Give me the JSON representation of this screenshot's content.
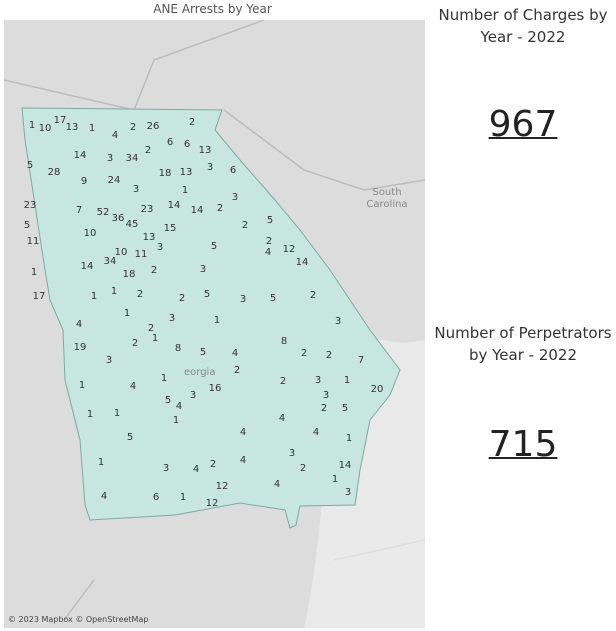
{
  "map_title": "ANE Arrests by Year",
  "kpis": [
    {
      "title": "Number of Charges by Year - 2022",
      "value": 967
    },
    {
      "title": "Number of Perpetrators by Year - 2022",
      "value": 715
    }
  ],
  "map_labels": {
    "neighbor": "South Carolina",
    "state": "eorgia"
  },
  "attribution": "© 2023 Mapbox © OpenStreetMap",
  "counties": [
    1,
    10,
    17,
    13,
    1,
    4,
    2,
    26,
    2,
    14,
    3,
    34,
    2,
    6,
    6,
    13,
    28,
    5,
    9,
    24,
    18,
    13,
    3,
    6,
    3,
    1,
    3,
    23,
    7,
    52,
    36,
    45,
    23,
    14,
    14,
    2,
    5,
    10,
    13,
    15,
    2,
    5,
    11,
    34,
    10,
    11,
    3,
    5,
    4,
    12,
    2,
    14,
    1,
    14,
    18,
    2,
    3,
    17,
    1,
    1,
    2,
    2,
    5,
    3,
    5,
    2,
    4,
    1,
    2,
    3,
    1,
    3,
    19,
    3,
    2,
    1,
    8,
    5,
    4,
    8,
    2,
    2,
    7,
    1,
    4,
    1,
    2,
    3,
    2,
    20,
    1,
    1,
    1,
    5,
    3,
    16,
    4,
    3,
    5,
    2,
    5,
    1,
    4,
    4,
    4,
    1,
    1,
    3,
    2,
    4,
    4,
    3,
    2,
    14,
    1,
    4,
    6,
    1,
    12,
    12,
    4,
    3
  ]
}
